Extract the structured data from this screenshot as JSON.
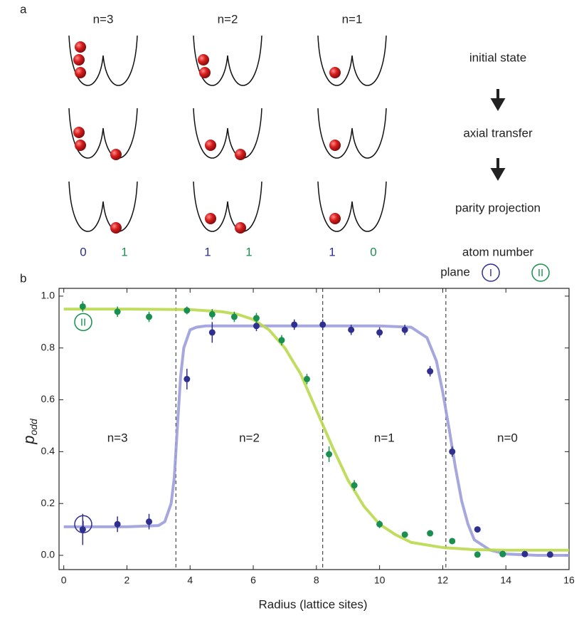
{
  "panel_a": {
    "label": "a",
    "columns": [
      {
        "title": "n=3",
        "counts": [
          0,
          1
        ]
      },
      {
        "title": "n=2",
        "counts": [
          1,
          1
        ]
      },
      {
        "title": "n=1",
        "counts": [
          1,
          0
        ]
      }
    ],
    "steps": [
      "initial state",
      "axial transfer",
      "parity projection"
    ],
    "atom_number_label": "atom number",
    "plane_label": "plane"
  },
  "chart_data": {
    "type": "scatter",
    "label": "b",
    "x_label": "Radius (lattice sites)",
    "y_label": "p",
    "y_label_subscript": "odd",
    "xlim": [
      -0.15,
      16
    ],
    "ylim": [
      -0.055,
      1.03
    ],
    "xticks": [
      0,
      2,
      4,
      6,
      8,
      10,
      12,
      14,
      16
    ],
    "yticks": [
      {
        "value": 0,
        "label": "0.0"
      },
      {
        "value": 0.2,
        "label": "0.2"
      },
      {
        "value": 0.4,
        "label": "0.4"
      },
      {
        "value": 0.6,
        "label": "0.6"
      },
      {
        "value": 0.8,
        "label": "0.8"
      },
      {
        "value": 1,
        "label": "1.0"
      }
    ],
    "boundaries": [
      3.55,
      8.2,
      12.1
    ],
    "regions": [
      "n=3",
      "n=2",
      "n=1",
      "n=0"
    ],
    "series": [
      {
        "name": "I",
        "color": "#2e2f8f",
        "x": [
          0.6,
          1.7,
          2.7,
          3.9,
          4.7,
          6.1,
          7.3,
          8.2,
          9.1,
          10.0,
          10.8,
          11.6,
          12.3,
          13.1,
          13.9,
          14.6,
          15.4
        ],
        "values": [
          0.1,
          0.12,
          0.13,
          0.68,
          0.86,
          0.885,
          0.89,
          0.89,
          0.87,
          0.86,
          0.87,
          0.71,
          0.4,
          0.1,
          0.005,
          0.005,
          0.003
        ],
        "errors": [
          0.06,
          0.03,
          0.03,
          0.04,
          0.04,
          0.02,
          0.02,
          0.02,
          0.02,
          0.02,
          0.02,
          0.02,
          0.02,
          0.01,
          0.01,
          0.01,
          0.01
        ]
      },
      {
        "name": "II",
        "color": "#1a9050",
        "x": [
          0.6,
          1.7,
          2.7,
          3.9,
          4.7,
          5.4,
          6.1,
          6.9,
          7.7,
          8.4,
          9.2,
          10.0,
          10.8,
          11.6,
          12.3,
          13.1,
          13.9
        ],
        "values": [
          0.96,
          0.94,
          0.92,
          0.945,
          0.93,
          0.92,
          0.915,
          0.83,
          0.68,
          0.39,
          0.27,
          0.12,
          0.08,
          0.085,
          0.055,
          0.003,
          0.005
        ],
        "errors": [
          0.02,
          0.02,
          0.02,
          0.015,
          0.02,
          0.02,
          0.02,
          0.02,
          0.02,
          0.03,
          0.02,
          0.015,
          0.01,
          0.01,
          0.01,
          0.005,
          0.005
        ]
      }
    ],
    "fits": [
      {
        "color": "#9d9ddc",
        "x": [
          0,
          1,
          2,
          3,
          3.2,
          3.4,
          3.5,
          3.6,
          3.7,
          3.8,
          4,
          4.2,
          4.5,
          5,
          6,
          7,
          8,
          9,
          10,
          11,
          11.5,
          11.8,
          12,
          12.2,
          12.4,
          12.6,
          12.8,
          13,
          13.5,
          14,
          15,
          16
        ],
        "values": [
          0.11,
          0.11,
          0.11,
          0.115,
          0.13,
          0.2,
          0.3,
          0.5,
          0.69,
          0.8,
          0.87,
          0.88,
          0.885,
          0.885,
          0.885,
          0.885,
          0.885,
          0.885,
          0.885,
          0.88,
          0.84,
          0.75,
          0.63,
          0.49,
          0.34,
          0.21,
          0.12,
          0.06,
          0.02,
          0.005,
          0,
          0
        ]
      },
      {
        "color": "#b9d94f",
        "x": [
          0,
          2,
          4,
          5,
          5.5,
          6,
          6.5,
          7,
          7.5,
          8,
          8.5,
          9,
          9.5,
          10,
          10.5,
          11,
          12,
          13,
          14,
          16
        ],
        "values": [
          0.95,
          0.95,
          0.948,
          0.94,
          0.93,
          0.91,
          0.87,
          0.8,
          0.7,
          0.56,
          0.42,
          0.29,
          0.19,
          0.12,
          0.08,
          0.05,
          0.03,
          0.022,
          0.02,
          0.02
        ]
      }
    ]
  }
}
